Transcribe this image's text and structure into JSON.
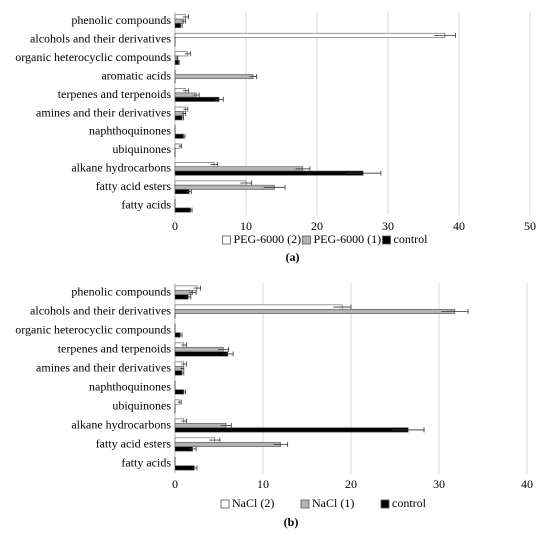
{
  "chart_data": [
    {
      "type": "hbar",
      "caption": "(a)",
      "categories": [
        "phenolic compounds",
        "alcohols and their derivatives",
        "organic heterocyclic compounds",
        "aromatic acids",
        "terpenes and terpenoids",
        "amines and their derivatives",
        "naphthoquinones",
        "ubiquinones",
        "alkane hydrocarbons",
        "fatty acid esters",
        "fatty acids"
      ],
      "series": [
        {
          "name": "PEG-6000 (2)",
          "color": "#ffffff",
          "values": [
            1.5,
            38,
            1.8,
            0,
            1.5,
            1.5,
            0,
            0.7,
            5.5,
            10,
            0
          ],
          "errors": [
            0.4,
            1.5,
            0.4,
            0,
            0.4,
            0.3,
            0,
            0.2,
            0.5,
            0.8,
            0
          ]
        },
        {
          "name": "PEG-6000 (1)",
          "color": "#b3b3b3",
          "values": [
            1.2,
            0,
            0.3,
            11,
            3,
            1.2,
            0,
            0,
            18,
            14,
            0
          ],
          "errors": [
            0.3,
            0,
            0.1,
            0.5,
            0.4,
            0.3,
            0,
            0,
            1,
            1.5,
            0
          ]
        },
        {
          "name": "control",
          "color": "#000000",
          "values": [
            0.8,
            0,
            0.5,
            0,
            6.2,
            1,
            1.2,
            0,
            26.5,
            2,
            2.2
          ],
          "errors": [
            0.2,
            0,
            0.1,
            0,
            0.6,
            0.2,
            0.2,
            0,
            2.5,
            0.3,
            0.2
          ]
        }
      ],
      "xlim": [
        0,
        50
      ],
      "xticks": [
        0,
        10,
        20,
        30,
        40,
        50
      ],
      "grid": true,
      "legend": "bottom"
    },
    {
      "type": "hbar",
      "caption": "(b)",
      "categories": [
        "phenolic compounds",
        "alcohols and their derivatives",
        "organic heterocyclic compounds",
        "terpenes and terpenoids",
        "amines and their derivatives",
        "naphthoquinones",
        "ubiquinones",
        "alkane hydrocarbons",
        "fatty acid esters",
        "fatty acids"
      ],
      "series": [
        {
          "name": "NaCl (2)",
          "color": "#ffffff",
          "values": [
            2.5,
            19,
            0,
            1,
            1,
            0,
            0.5,
            1,
            4.5,
            0
          ],
          "errors": [
            0.4,
            1,
            0,
            0.3,
            0.3,
            0,
            0.2,
            0.3,
            0.6,
            0
          ]
        },
        {
          "name": "NaCl (1)",
          "color": "#b3b3b3",
          "values": [
            2,
            31.8,
            0,
            5.5,
            0.8,
            0,
            0,
            5.8,
            12,
            0
          ],
          "errors": [
            0.4,
            1.5,
            0,
            0.6,
            0.2,
            0,
            0,
            0.6,
            0.8,
            0
          ]
        },
        {
          "name": "control",
          "color": "#000000",
          "values": [
            1.5,
            0,
            0.6,
            6,
            0.8,
            1,
            0,
            26.5,
            2,
            2.2
          ],
          "errors": [
            0.3,
            0,
            0.2,
            0.6,
            0.2,
            0.2,
            0,
            1.8,
            0.4,
            0.3
          ]
        }
      ],
      "xlim": [
        0,
        40
      ],
      "xticks": [
        0,
        10,
        20,
        30,
        40
      ],
      "grid": true,
      "legend": "bottom"
    }
  ]
}
